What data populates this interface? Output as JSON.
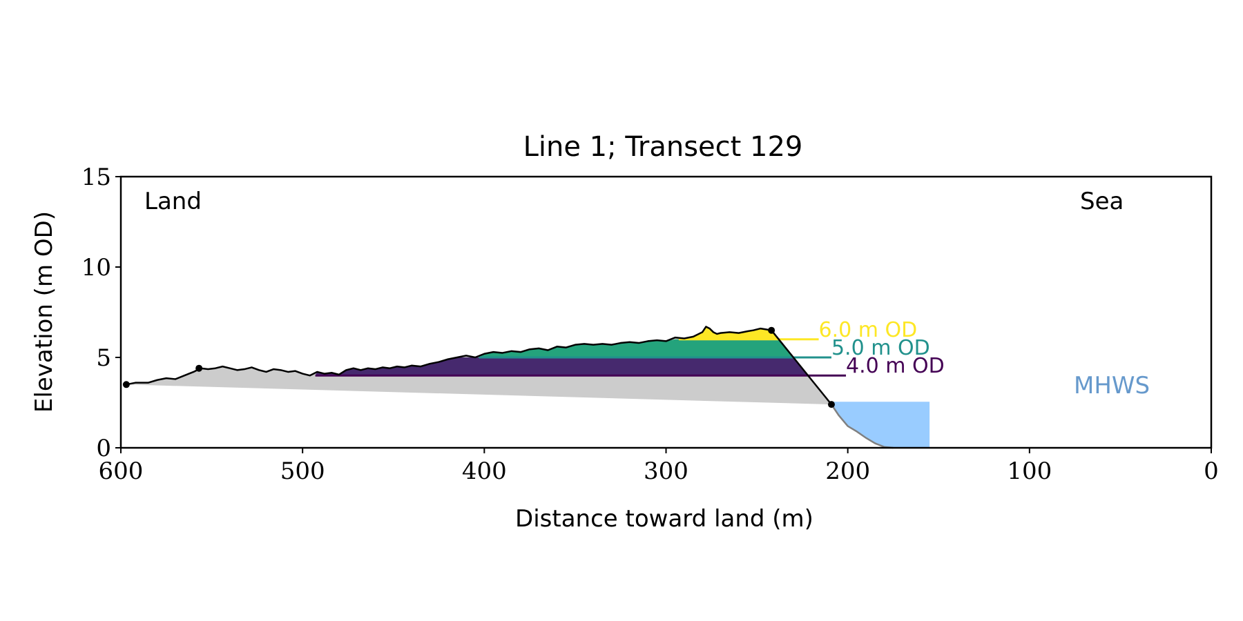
{
  "chart_data": {
    "type": "area",
    "title": "Line 1; Transect 129",
    "xlabel": "Distance toward land (m)",
    "ylabel": "Elevation (m OD)",
    "xlim": [
      600,
      0
    ],
    "ylim": [
      0,
      15
    ],
    "x_ticks": [
      600,
      500,
      400,
      300,
      200,
      100,
      0
    ],
    "y_ticks": [
      0,
      5,
      10,
      15
    ],
    "grid": false,
    "annotations": {
      "land": "Land",
      "sea": "Sea",
      "mhws": "MHWS"
    },
    "profile": {
      "x": [
        597,
        592,
        585,
        580,
        575,
        570,
        565,
        560,
        556,
        552,
        548,
        544,
        540,
        536,
        532,
        528,
        524,
        520,
        516,
        512,
        508,
        504,
        500,
        496,
        492,
        488,
        484,
        480,
        476,
        472,
        468,
        464,
        460,
        456,
        452,
        448,
        444,
        440,
        435,
        430,
        425,
        420,
        415,
        410,
        405,
        400,
        395,
        390,
        385,
        380,
        375,
        370,
        365,
        360,
        355,
        350,
        345,
        340,
        335,
        330,
        325,
        320,
        315,
        310,
        305,
        300,
        295,
        290,
        285,
        280,
        278,
        276,
        274,
        272,
        270,
        265,
        260,
        255,
        252,
        248,
        245,
        242
      ],
      "y": [
        3.5,
        3.6,
        3.6,
        3.75,
        3.85,
        3.8,
        4.0,
        4.2,
        4.4,
        4.35,
        4.4,
        4.5,
        4.4,
        4.3,
        4.35,
        4.45,
        4.3,
        4.2,
        4.35,
        4.3,
        4.2,
        4.25,
        4.1,
        4.0,
        4.2,
        4.1,
        4.15,
        4.05,
        4.3,
        4.4,
        4.3,
        4.4,
        4.35,
        4.45,
        4.4,
        4.5,
        4.45,
        4.55,
        4.5,
        4.65,
        4.75,
        4.9,
        5.0,
        5.1,
        5.0,
        5.2,
        5.3,
        5.25,
        5.35,
        5.3,
        5.45,
        5.5,
        5.4,
        5.6,
        5.55,
        5.7,
        5.75,
        5.7,
        5.75,
        5.7,
        5.8,
        5.85,
        5.8,
        5.9,
        5.95,
        5.9,
        6.1,
        6.05,
        6.15,
        6.4,
        6.7,
        6.6,
        6.4,
        6.3,
        6.35,
        6.4,
        6.35,
        6.45,
        6.5,
        6.6,
        6.55,
        6.5
      ]
    },
    "cliff_line": {
      "x": [
        242,
        209
      ],
      "y": [
        6.5,
        2.4
      ]
    },
    "lower_profile": {
      "x": [
        209,
        205,
        200,
        195,
        190,
        185,
        180,
        175
      ],
      "y": [
        2.4,
        1.8,
        1.2,
        0.9,
        0.55,
        0.25,
        0.05,
        0.0
      ]
    },
    "gray_base": {
      "x": [
        597,
        209
      ],
      "y": [
        3.5,
        2.4
      ]
    },
    "key_points": [
      {
        "x": 597,
        "y": 3.5
      },
      {
        "x": 557,
        "y": 4.4
      },
      {
        "x": 242,
        "y": 6.5
      },
      {
        "x": 209,
        "y": 2.4
      }
    ],
    "mhws": {
      "x_start": 209,
      "x_end": 155,
      "elevation": 2.55
    },
    "levels": [
      {
        "label": "4.0 m OD",
        "elevation": 4.0,
        "x_start": 493,
        "line_end": 201,
        "color": "#440154"
      },
      {
        "label": "5.0 m OD",
        "elevation": 5.0,
        "x_start": 403,
        "line_end": 209,
        "color": "#21918c"
      },
      {
        "label": "6.0 m OD",
        "elevation": 6.0,
        "x_start": 293,
        "line_end": 216,
        "color": "#fde725"
      }
    ],
    "colors": {
      "level_4": "#46296e",
      "level_5": "#24a37c",
      "level_6": "#fde725",
      "gray_fill": "#cccccc",
      "water_fill": "#99ccff",
      "mhws_text": "#6699cc",
      "profile": "#000000",
      "lower_profile": "#808080"
    }
  }
}
